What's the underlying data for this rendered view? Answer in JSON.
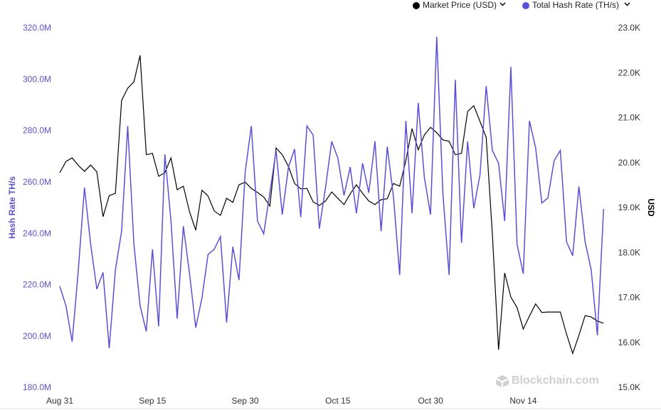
{
  "chart_data": {
    "type": "line",
    "legend": "top-right",
    "watermark": "Blockchain.com",
    "ylabel": "Hash Rate TH/s",
    "y2label": "USD",
    "categories": [
      "Aug 31",
      null,
      null,
      null,
      null,
      null,
      null,
      null,
      null,
      null,
      null,
      null,
      null,
      null,
      null,
      "Sep 15",
      null,
      null,
      null,
      null,
      null,
      null,
      null,
      null,
      null,
      null,
      null,
      null,
      null,
      null,
      "Sep 30",
      null,
      null,
      null,
      null,
      null,
      null,
      null,
      null,
      null,
      null,
      null,
      null,
      null,
      null,
      "Oct 15",
      null,
      null,
      null,
      null,
      null,
      null,
      null,
      null,
      null,
      null,
      null,
      null,
      null,
      null,
      "Oct 30",
      null,
      null,
      null,
      null,
      null,
      null,
      null,
      null,
      null,
      null,
      null,
      null,
      null,
      null,
      "Nov 14",
      null,
      null,
      null,
      null,
      null,
      null,
      null,
      null,
      null,
      null,
      null,
      null,
      null
    ],
    "ylim": [
      180000000,
      320000000
    ],
    "yticks": [
      {
        "value": 180000000,
        "label": "180.0M"
      },
      {
        "value": 200000000,
        "label": "200.0M"
      },
      {
        "value": 220000000,
        "label": "220.0M"
      },
      {
        "value": 240000000,
        "label": "240.0M"
      },
      {
        "value": 260000000,
        "label": "260.0M"
      },
      {
        "value": 280000000,
        "label": "280.0M"
      },
      {
        "value": 300000000,
        "label": "300.0M"
      },
      {
        "value": 320000000,
        "label": "320.0M"
      }
    ],
    "y2lim": [
      15000,
      23000
    ],
    "y2ticks": [
      {
        "value": 15000,
        "label": "15.0K"
      },
      {
        "value": 16000,
        "label": "16.0K"
      },
      {
        "value": 17000,
        "label": "17.0K"
      },
      {
        "value": 18000,
        "label": "18.0K"
      },
      {
        "value": 19000,
        "label": "19.0K"
      },
      {
        "value": 20000,
        "label": "20.0K"
      },
      {
        "value": 21000,
        "label": "21.0K"
      },
      {
        "value": 22000,
        "label": "22.0K"
      },
      {
        "value": 23000,
        "label": "23.0K"
      }
    ],
    "series": [
      {
        "name": "Market Price (USD)",
        "color": "#000000",
        "axis": "y2",
        "values": [
          19790,
          20040,
          20120,
          19950,
          19820,
          19960,
          19810,
          18810,
          19280,
          19330,
          21400,
          21670,
          21810,
          22400,
          20190,
          20220,
          19710,
          19790,
          20120,
          19410,
          19490,
          18920,
          18510,
          19400,
          19270,
          18940,
          18840,
          19220,
          19130,
          19520,
          19580,
          19440,
          19350,
          19250,
          19050,
          20340,
          20190,
          19930,
          19550,
          19430,
          19440,
          19140,
          19060,
          19160,
          19360,
          19220,
          19080,
          19320,
          19520,
          19330,
          19160,
          19080,
          19190,
          19210,
          19550,
          19490,
          20060,
          20770,
          20300,
          20630,
          20800,
          20680,
          20520,
          20490,
          20190,
          20220,
          21150,
          21280,
          20930,
          20580,
          18420,
          15850,
          17560,
          17020,
          16790,
          16310,
          16600,
          16870,
          16680,
          16690,
          16690,
          16690,
          16200,
          15770,
          16170,
          16610,
          16580,
          16490,
          16440
        ]
      },
      {
        "name": "Total Hash Rate (TH/s)",
        "color": "#5a50d6",
        "values": [
          219600000,
          212000000,
          198000000,
          226000000,
          258000000,
          236000000,
          218500000,
          225000000,
          195500000,
          226000000,
          241000000,
          282000000,
          236000000,
          212000000,
          202000000,
          234000000,
          204000000,
          271000000,
          245000000,
          207000000,
          243000000,
          224500000,
          203500000,
          215000000,
          232000000,
          234000000,
          239000000,
          205500000,
          235000000,
          222000000,
          264000000,
          282000000,
          245000000,
          240000000,
          256000000,
          272500000,
          247500000,
          266000000,
          273000000,
          246500000,
          282000000,
          278500000,
          242000000,
          258000000,
          276000000,
          269500000,
          255000000,
          266000000,
          248000000,
          267500000,
          256000000,
          276000000,
          241000000,
          274000000,
          254500000,
          224000000,
          284000000,
          248000000,
          291000000,
          262000000,
          247500000,
          316700000,
          255500000,
          224000000,
          300000000,
          236500000,
          276000000,
          250000000,
          263000000,
          297500000,
          272500000,
          267500000,
          245000000,
          305000000,
          236000000,
          224500000,
          284000000,
          273500000,
          252000000,
          254000000,
          268500000,
          272500000,
          237000000,
          231500000,
          258500000,
          237000000,
          226000000,
          200500000,
          249700000
        ]
      }
    ]
  }
}
